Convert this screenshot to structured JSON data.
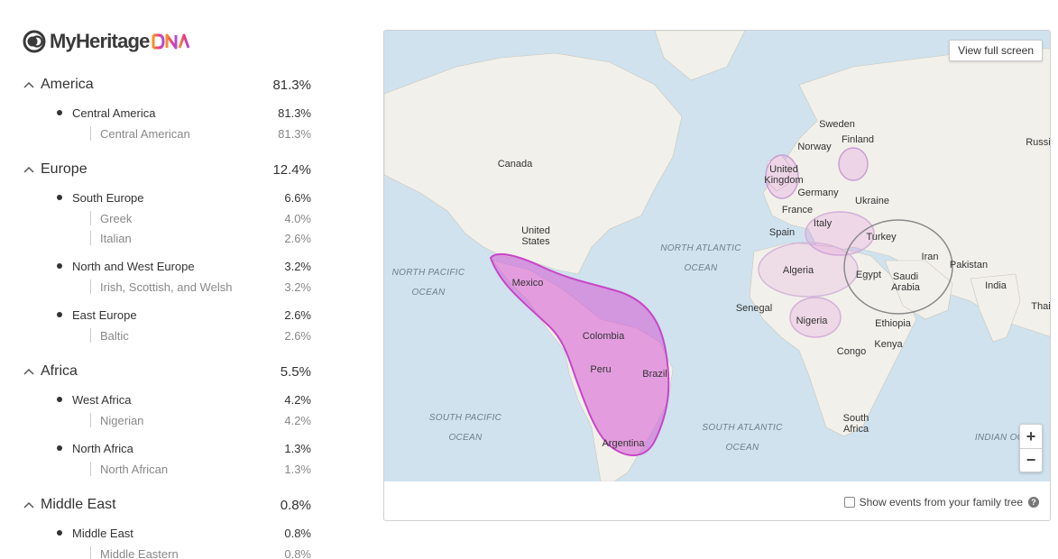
{
  "logo": {
    "text": "MyHeritage",
    "suffix": "DNA"
  },
  "regions": [
    {
      "name": "America",
      "pct": "81.3%",
      "subs": [
        {
          "name": "Central America",
          "pct": "81.3%",
          "eths": [
            {
              "name": "Central American",
              "pct": "81.3%"
            }
          ]
        }
      ]
    },
    {
      "name": "Europe",
      "pct": "12.4%",
      "subs": [
        {
          "name": "South Europe",
          "pct": "6.6%",
          "eths": [
            {
              "name": "Greek",
              "pct": "4.0%"
            },
            {
              "name": "Italian",
              "pct": "2.6%"
            }
          ]
        },
        {
          "name": "North and West Europe",
          "pct": "3.2%",
          "eths": [
            {
              "name": "Irish, Scottish, and Welsh",
              "pct": "3.2%"
            }
          ]
        },
        {
          "name": "East Europe",
          "pct": "2.6%",
          "eths": [
            {
              "name": "Baltic",
              "pct": "2.6%"
            }
          ]
        }
      ]
    },
    {
      "name": "Africa",
      "pct": "5.5%",
      "subs": [
        {
          "name": "West Africa",
          "pct": "4.2%",
          "eths": [
            {
              "name": "Nigerian",
              "pct": "4.2%"
            }
          ]
        },
        {
          "name": "North Africa",
          "pct": "1.3%",
          "eths": [
            {
              "name": "North African",
              "pct": "1.3%"
            }
          ]
        }
      ]
    },
    {
      "name": "Middle East",
      "pct": "0.8%",
      "subs": [
        {
          "name": "Middle East",
          "pct": "0.8%",
          "eths": [
            {
              "name": "Middle Eastern",
              "pct": "0.8%"
            }
          ]
        }
      ]
    }
  ],
  "map": {
    "fullscreen_label": "View full screen",
    "zoom_in": "+",
    "zoom_out": "−",
    "show_events_label": "Show events from your family tree",
    "help": "?",
    "countries": [
      "Canada",
      "United States",
      "Mexico",
      "Colombia",
      "Peru",
      "Brazil",
      "Argentina",
      "Sweden",
      "Finland",
      "Norway",
      "Russi",
      "United Kingdom",
      "Germany",
      "Ukraine",
      "France",
      "Italy",
      "Spain",
      "Turkey",
      "Iran",
      "Pakistan",
      "Algeria",
      "Egypt",
      "Saudi Arabia",
      "India",
      "Thai",
      "Senegal",
      "Nigeria",
      "Ethiopia",
      "Congo",
      "Kenya",
      "South Africa"
    ],
    "oceans": [
      "NORTH PACIFIC OCEAN",
      "NORTH ATLANTIC OCEAN",
      "SOUTH PACIFIC OCEAN",
      "SOUTH ATLANTIC OCEAN",
      "INDIAN OC"
    ],
    "colors": {
      "water": "#cfe2ee",
      "land": "#f2f0ea",
      "highlight": "#d75ad6",
      "ring": "#8a8a8a"
    }
  }
}
